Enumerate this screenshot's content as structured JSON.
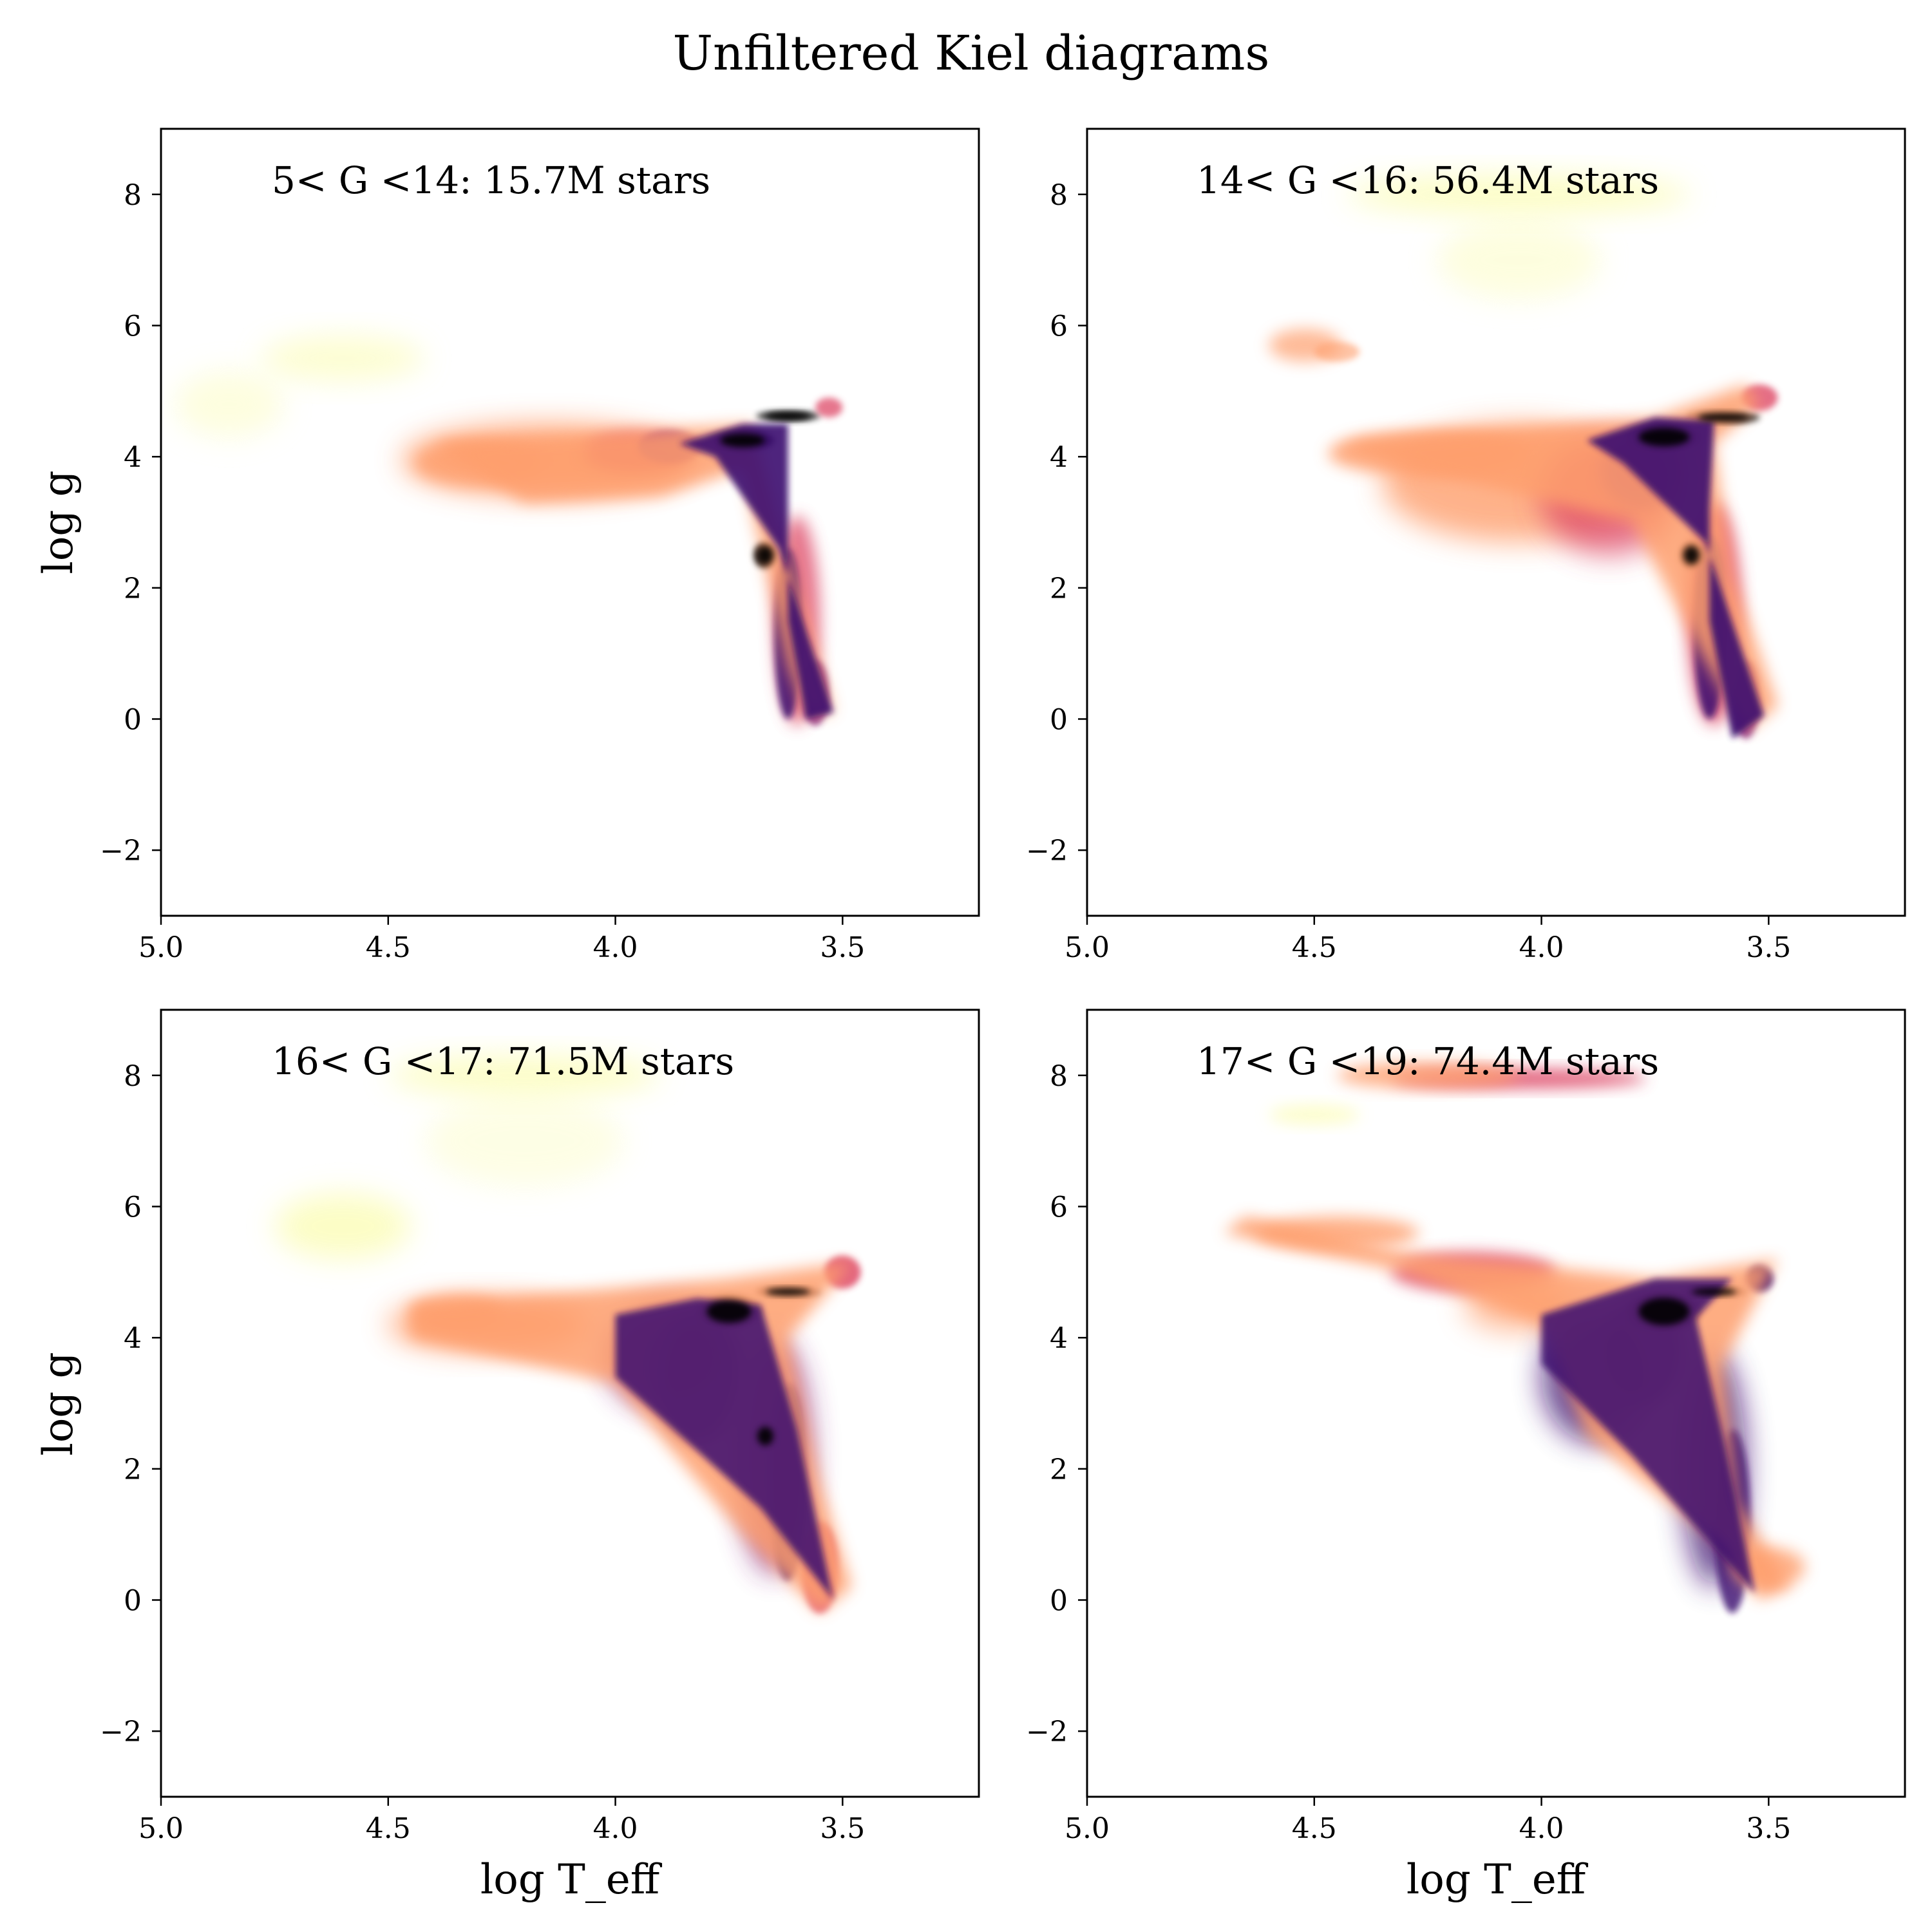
{
  "title": "Unfiltered Kiel diagrams",
  "chart_data": [
    {
      "type": "heatmap",
      "annotation": "5< G <14: 15.7M stars",
      "x_reversed": true,
      "y_reversed": true,
      "xlim": [
        5.0,
        3.2
      ],
      "ylim": [
        9.0,
        -3.0
      ],
      "xticks": [
        "5.0",
        "4.5",
        "4.0",
        "3.5"
      ],
      "yticks": [
        "−2",
        "0",
        "2",
        "4",
        "6",
        "8"
      ],
      "xlabel": "",
      "ylabel": "log g",
      "colormap": "magma_r",
      "density_features": [
        {
          "x": 3.68,
          "y": 2.5,
          "w": 0.22
        },
        {
          "x": 3.76,
          "y": 4.2,
          "w": 0.18
        },
        {
          "x": 3.7,
          "y": 4.6,
          "w": 0.1
        }
      ]
    },
    {
      "type": "heatmap",
      "annotation": "14< G <16: 56.4M stars",
      "x_reversed": true,
      "y_reversed": true,
      "xlim": [
        5.0,
        3.2
      ],
      "ylim": [
        9.0,
        -3.0
      ],
      "xticks": [
        "5.0",
        "4.5",
        "4.0",
        "3.5"
      ],
      "yticks": [
        "−2",
        "0",
        "2",
        "4",
        "6",
        "8"
      ],
      "xlabel": "",
      "ylabel": "",
      "colormap": "magma_r"
    },
    {
      "type": "heatmap",
      "annotation": "16< G <17: 71.5M stars",
      "x_reversed": true,
      "y_reversed": true,
      "xlim": [
        5.0,
        3.2
      ],
      "ylim": [
        9.0,
        -3.0
      ],
      "xticks": [
        "5.0",
        "4.5",
        "4.0",
        "3.5"
      ],
      "yticks": [
        "−2",
        "0",
        "2",
        "4",
        "6",
        "8"
      ],
      "xlabel": "log T_eff",
      "ylabel": "log g",
      "colormap": "magma_r"
    },
    {
      "type": "heatmap",
      "annotation": "17< G <19: 74.4M stars",
      "x_reversed": true,
      "y_reversed": true,
      "xlim": [
        5.0,
        3.2
      ],
      "ylim": [
        9.0,
        -3.0
      ],
      "xticks": [
        "5.0",
        "4.5",
        "4.0",
        "3.5"
      ],
      "yticks": [
        "−2",
        "0",
        "2",
        "4",
        "6",
        "8"
      ],
      "xlabel": "log T_eff",
      "ylabel": "",
      "colormap": "magma_r"
    }
  ],
  "colors": {
    "densest": "#000004",
    "dense": "#3b0f70",
    "mid": "#8c2981",
    "medium": "#de4968",
    "light": "#fe9f6d",
    "sparse": "#fcfdbf"
  }
}
